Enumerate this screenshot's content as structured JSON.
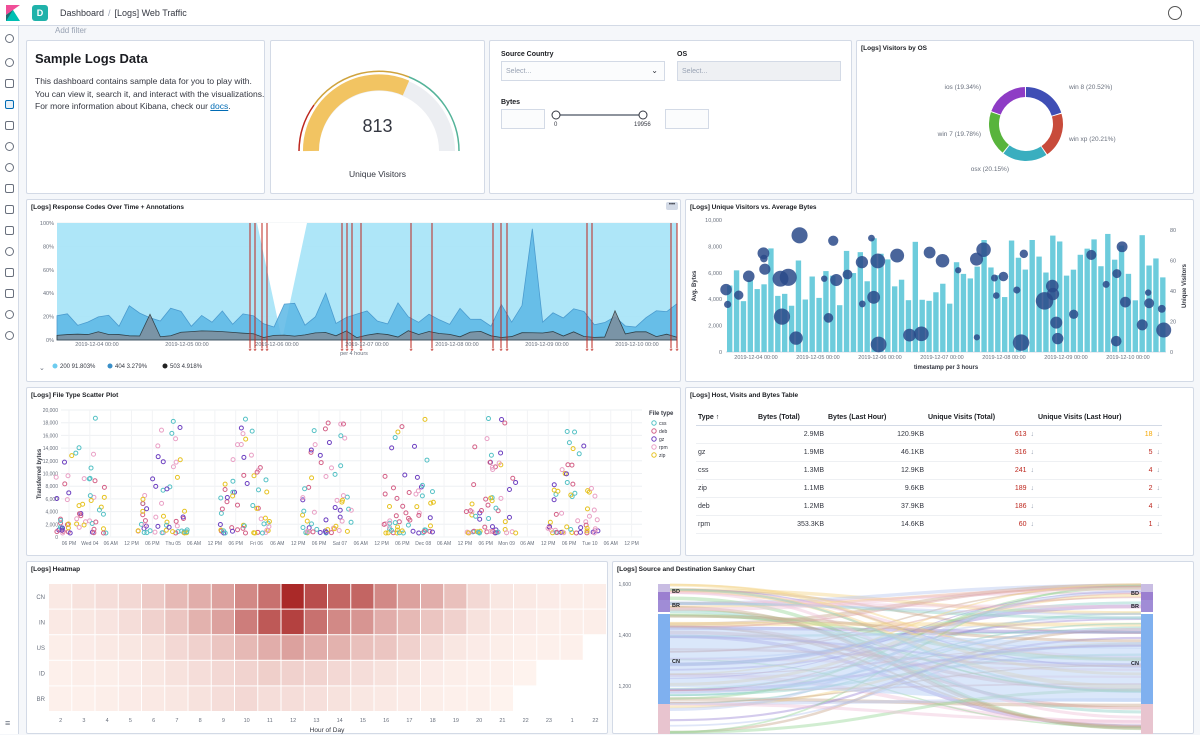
{
  "topbar": {
    "space_letter": "D",
    "breadcrumb_root": "Dashboard",
    "breadcrumb_current": "[Logs] Web Traffic"
  },
  "filter": {
    "add_filter": "Add filter"
  },
  "markdown": {
    "title": "Sample Logs Data",
    "text_before_link": "This dashboard contains sample data for you to play with. You can view it, search it, and interact with the visualizations. For more information about Kibana, check our ",
    "link_text": "docs",
    "text_after_link": "."
  },
  "gauge": {
    "value": "813",
    "label": "Unique Visitors"
  },
  "controls": {
    "source_country_label": "Source Country",
    "source_country_placeholder": "Select...",
    "os_label": "OS",
    "os_placeholder": "Select...",
    "bytes_label": "Bytes",
    "range_min": "0",
    "range_max": "19956"
  },
  "panels": {
    "visitors_by_os": "[Logs] Visitors by OS",
    "response_codes": "[Logs] Response Codes Over Time + Annotations",
    "unique_vs_bytes": "[Logs] Unique Visitors vs. Average Bytes",
    "file_type_scatter": "[Logs] File Type Scatter Plot",
    "host_table": "[Logs] Host, Visits and Bytes Table",
    "heatmap": "[Logs] Heatmap",
    "sankey": "[Logs] Source and Destination Sankey Chart"
  },
  "colors": {
    "blue": "#54b399",
    "accent": "#006bb4",
    "red": "#bd271e"
  },
  "os_chart": {
    "chart_data": {
      "type": "pie",
      "categories": [
        "win 8",
        "win xp",
        "osx",
        "win 7",
        "ios"
      ],
      "values": [
        20.52,
        20.21,
        20.15,
        19.78,
        19.34
      ],
      "labels": [
        "win 8 (20.52%)",
        "win xp (20.21%)",
        "osx (20.15%)",
        "win 7 (19.78%)",
        "ios (19.34%)"
      ],
      "colors": [
        "#3f4eb5",
        "#c84b3b",
        "#3aaebf",
        "#58b43c",
        "#8e3cc5"
      ]
    }
  },
  "response_chart": {
    "x_ticks": [
      "2019-12-04 00:00",
      "2019-12-05 00:00",
      "2019-12-06 00:00",
      "2019-12-07 00:00",
      "2019-12-08 00:00",
      "2019-12-09 00:00",
      "2019-12-10 00:00"
    ],
    "y_ticks": [
      "100%",
      "80%",
      "60%",
      "40%",
      "20%",
      "0%"
    ],
    "xlabel": "per 4 hours",
    "legend": [
      {
        "label": "200 91.803%",
        "color": "#6dccef"
      },
      {
        "label": "404 3.279%",
        "color": "#3a8fc8"
      },
      {
        "label": "503 4.918%",
        "color": "#222222"
      }
    ]
  },
  "unique_chart": {
    "ylabel_left": "Avg. Bytes",
    "ylabel_right": "Unique Visitors",
    "xlabel": "timestamp per 3 hours",
    "y_ticks_left": [
      "10,000",
      "8,000",
      "6,000",
      "4,000",
      "2,000",
      "0"
    ],
    "y_ticks_right": [
      "80",
      "60",
      "40",
      "20",
      "0"
    ],
    "x_ticks": [
      "2019-12-04 00:00",
      "2019-12-05 00:00",
      "2019-12-06 00:00",
      "2019-12-07 00:00",
      "2019-12-08 00:00",
      "2019-12-09 00:00",
      "2019-12-10 00:00"
    ]
  },
  "scatter_chart": {
    "ylabel": "Transferred bytes",
    "y_ticks": [
      "20,000",
      "18,000",
      "16,000",
      "14,000",
      "12,000",
      "10,000",
      "8,000",
      "6,000",
      "4,000",
      "2,000",
      "0"
    ],
    "x_ticks": [
      "06 PM",
      "Wed 04",
      "06 AM",
      "12 PM",
      "06 PM",
      "Thu 05",
      "06 AM",
      "12 PM",
      "06 PM",
      "Fri 06",
      "06 AM",
      "12 PM",
      "06 PM",
      "Sat 07",
      "06 AM",
      "12 PM",
      "06 PM",
      "Dec 08",
      "06 AM",
      "12 PM",
      "06 PM",
      "Mon 09",
      "06 AM",
      "12 PM",
      "06 PM",
      "Tue 10",
      "06 AM",
      "12 PM"
    ],
    "legend_title": "File type",
    "legend": [
      {
        "label": "css",
        "color": "#54c1c5"
      },
      {
        "label": "deb",
        "color": "#d36086"
      },
      {
        "label": "gz",
        "color": "#6c3fc0"
      },
      {
        "label": "rpm",
        "color": "#e9a0c5"
      },
      {
        "label": "zip",
        "color": "#e6c220"
      }
    ]
  },
  "host_table": {
    "headers": [
      "Type ↑",
      "Bytes (Total)",
      "Bytes (Last Hour)",
      "Unique Visits (Total)",
      "Unique Visits (Last Hour)"
    ],
    "rows": [
      {
        "type": "",
        "bytes_total": "2.9MB",
        "bytes_hour": "120.9KB",
        "visits_total": "613",
        "visits_hour": "18"
      },
      {
        "type": "gz",
        "bytes_total": "1.9MB",
        "bytes_hour": "46.1KB",
        "visits_total": "316",
        "visits_hour": "5"
      },
      {
        "type": "css",
        "bytes_total": "1.3MB",
        "bytes_hour": "12.9KB",
        "visits_total": "241",
        "visits_hour": "4"
      },
      {
        "type": "zip",
        "bytes_total": "1.1MB",
        "bytes_hour": "9.6KB",
        "visits_total": "189",
        "visits_hour": "2"
      },
      {
        "type": "deb",
        "bytes_total": "1.2MB",
        "bytes_hour": "37.9KB",
        "visits_total": "186",
        "visits_hour": "4"
      },
      {
        "type": "rpm",
        "bytes_total": "353.3KB",
        "bytes_hour": "14.6KB",
        "visits_total": "60",
        "visits_hour": "1"
      }
    ]
  },
  "heatmap": {
    "xlabel": "Hour of Day",
    "rows": [
      "CN",
      "IN",
      "US",
      "ID",
      "BR"
    ],
    "x_ticks": [
      "2",
      "3",
      "4",
      "5",
      "6",
      "7",
      "8",
      "9",
      "10",
      "11",
      "12",
      "13",
      "14",
      "15",
      "16",
      "17",
      "18",
      "19",
      "20",
      "21",
      "22",
      "23",
      "1",
      "22"
    ]
  },
  "sankey": {
    "y_ticks": [
      "1,600",
      "1,400",
      "1,200"
    ],
    "left_labels": [
      "BD",
      "BR",
      "CN"
    ],
    "right_labels": [
      "BD",
      "BR",
      "CN"
    ]
  }
}
